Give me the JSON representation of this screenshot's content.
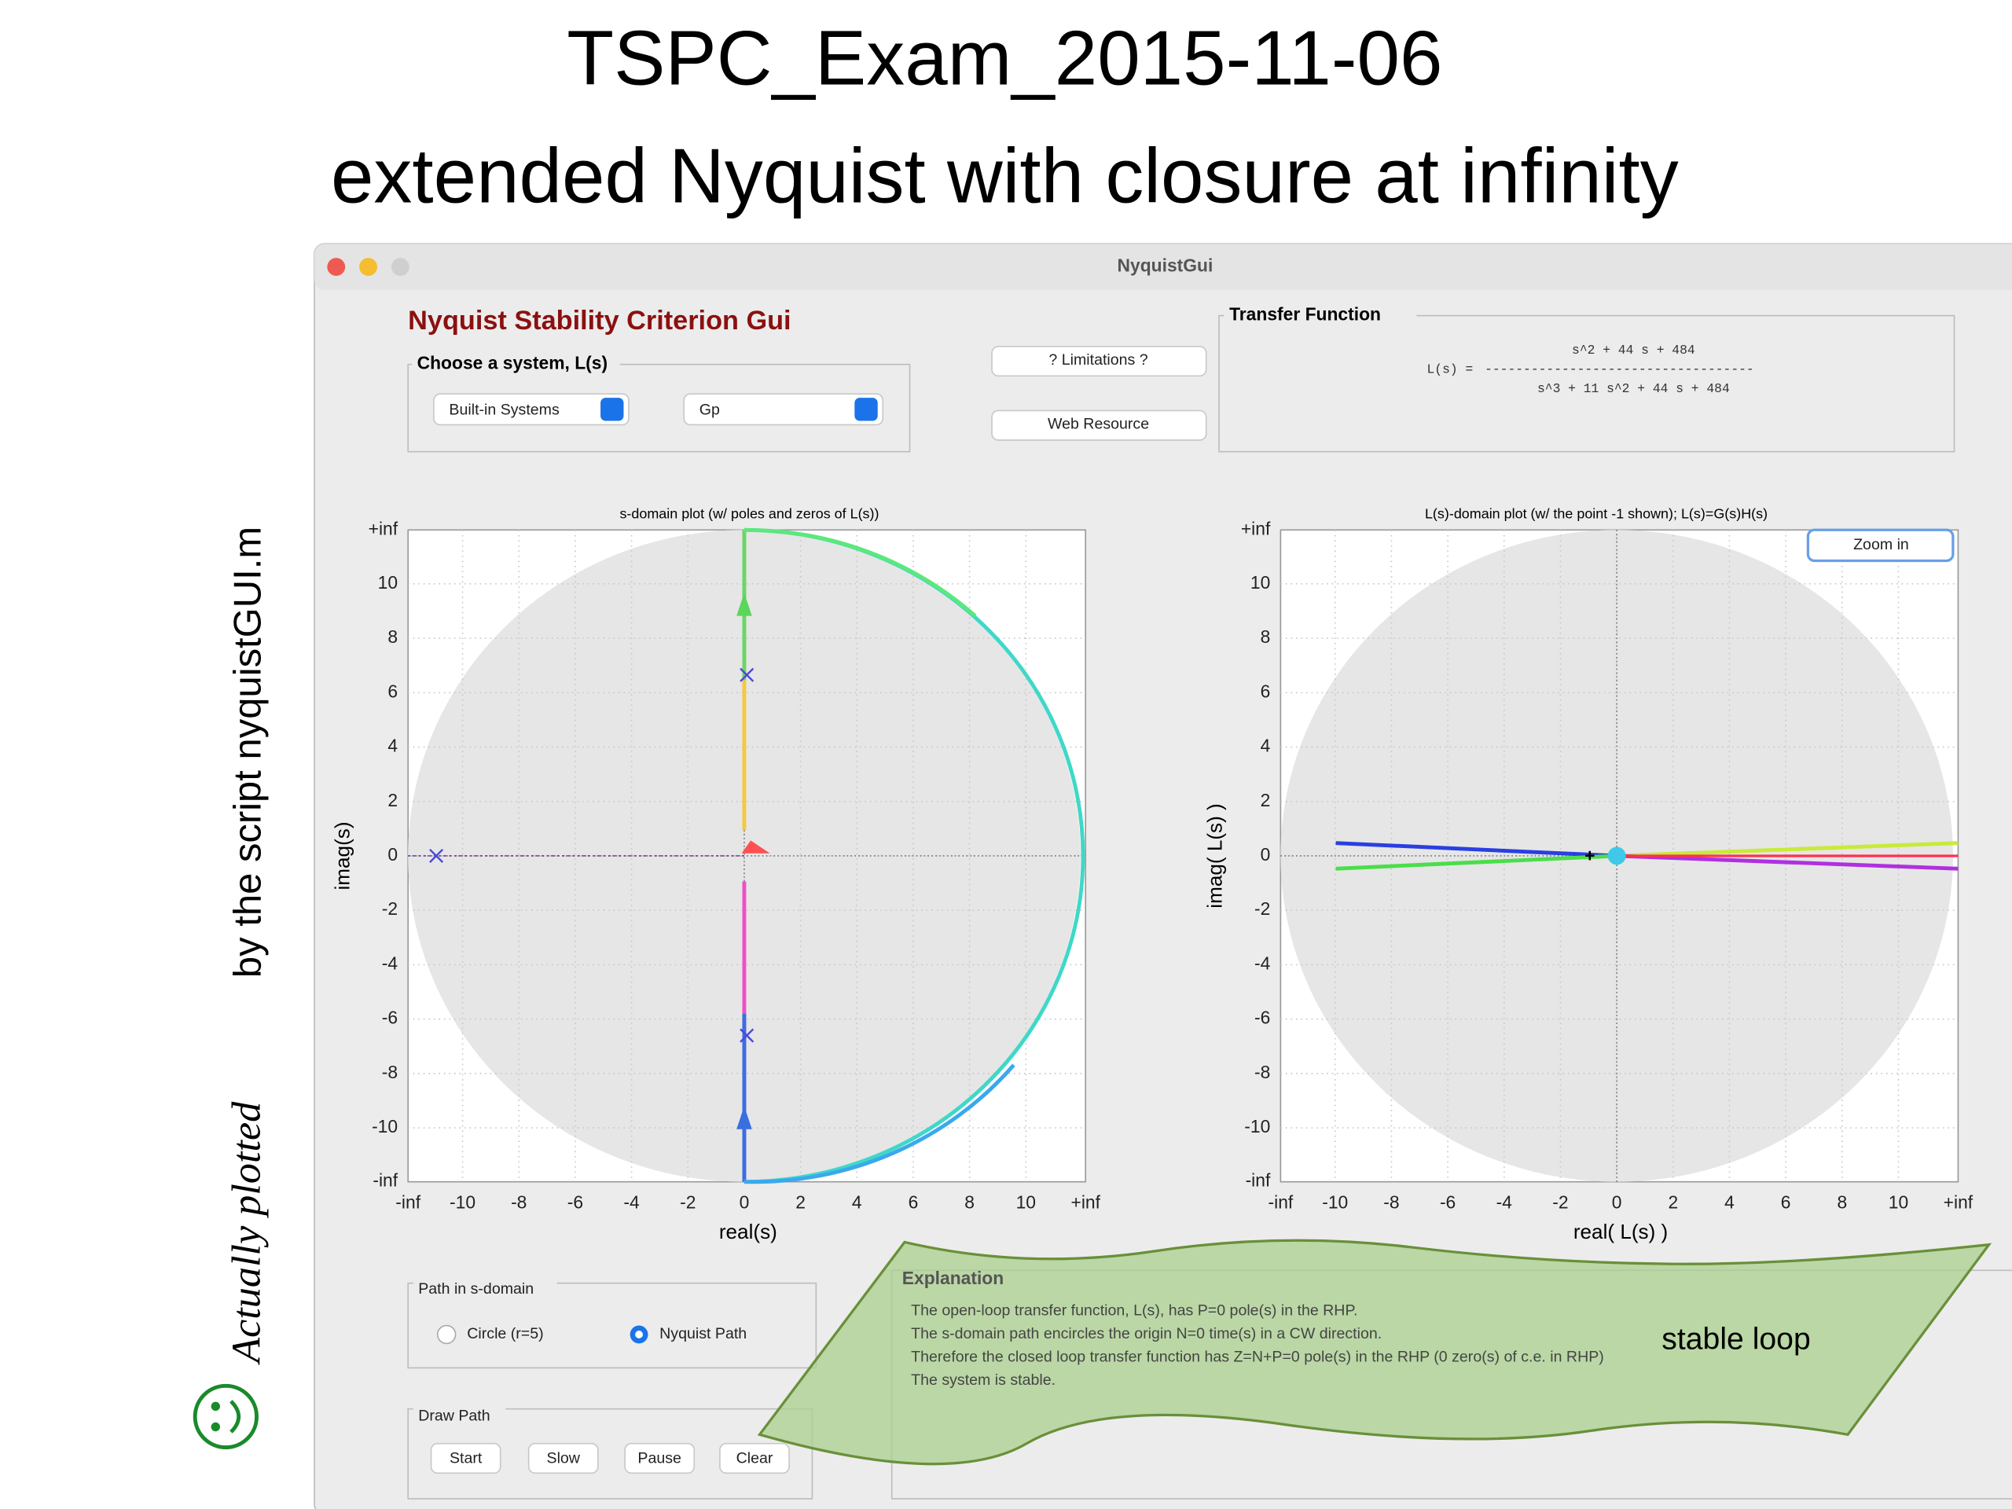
{
  "slide": {
    "title_lines": [
      "TSPC_Exam_2015-11-06",
      "extended Nyquist with closure at infinity"
    ],
    "side_note": {
      "italic": "Actually plotted",
      "rest": "by the script nyquistGUI.m"
    }
  },
  "window": {
    "title": "NyquistGui"
  },
  "gui": {
    "heading": "Nyquist Stability Criterion Gui",
    "system_panel": {
      "label": "Choose a system, L(s)",
      "menus": [
        "Built-in Systems",
        "Gp"
      ]
    },
    "buttons": [
      "? Limitations ?",
      "Web Resource"
    ],
    "transfer_function": {
      "label": "Transfer Function",
      "lhs": "L(s) =",
      "numerator": "s^2 + 44 s + 484",
      "fraction_bar": "-----------------------------------",
      "denominator": "s^3 + 11 s^2 + 44 s + 484"
    },
    "plots": [
      {
        "title": "s-domain plot (w/ poles and zeros of L(s))",
        "xlabel": "real(s)",
        "ylabel": "imag(s)",
        "xticks": [
          "-inf",
          "-10",
          "-8",
          "-6",
          "-4",
          "-2",
          "0",
          "2",
          "4",
          "6",
          "8",
          "10",
          "+inf"
        ],
        "yticks": [
          "+inf",
          "10",
          "8",
          "6",
          "4",
          "2",
          "0",
          "-2",
          "-4",
          "-6",
          "-8",
          "-10",
          "-inf"
        ]
      },
      {
        "title": "L(s)-domain plot (w/ the point -1 shown); L(s)=G(s)H(s)",
        "xlabel": "real( L(s) )",
        "ylabel": "imag( L(s) )",
        "xticks": [
          "-inf",
          "-10",
          "-8",
          "-6",
          "-4",
          "-2",
          "0",
          "2",
          "4",
          "6",
          "8",
          "10",
          "+inf"
        ],
        "yticks": [
          "+inf",
          "10",
          "8",
          "6",
          "4",
          "2",
          "0",
          "-2",
          "-4",
          "-6",
          "-8",
          "-10",
          "-inf"
        ],
        "button": "Zoom in"
      }
    ],
    "path_panel": {
      "label": "Path in s-domain",
      "options": [
        "Circle (r=5)",
        "Nyquist Path"
      ]
    },
    "draw_panel": {
      "label": "Draw Path",
      "buttons": [
        "Start",
        "Slow",
        "Pause",
        "Clear"
      ]
    },
    "explanation": {
      "label": "Explanation",
      "lines": [
        "The open-loop transfer function, L(s), has P=0 pole(s) in the RHP.",
        "The s-domain path encircles the origin N=0 time(s) in a CW direction.",
        "Therefore the closed loop transfer function has Z=N+P=0 pole(s) in the RHP (0 zero(s) of c.e. in RHP)",
        "The system is stable."
      ]
    }
  },
  "annotation": "stable loop"
}
